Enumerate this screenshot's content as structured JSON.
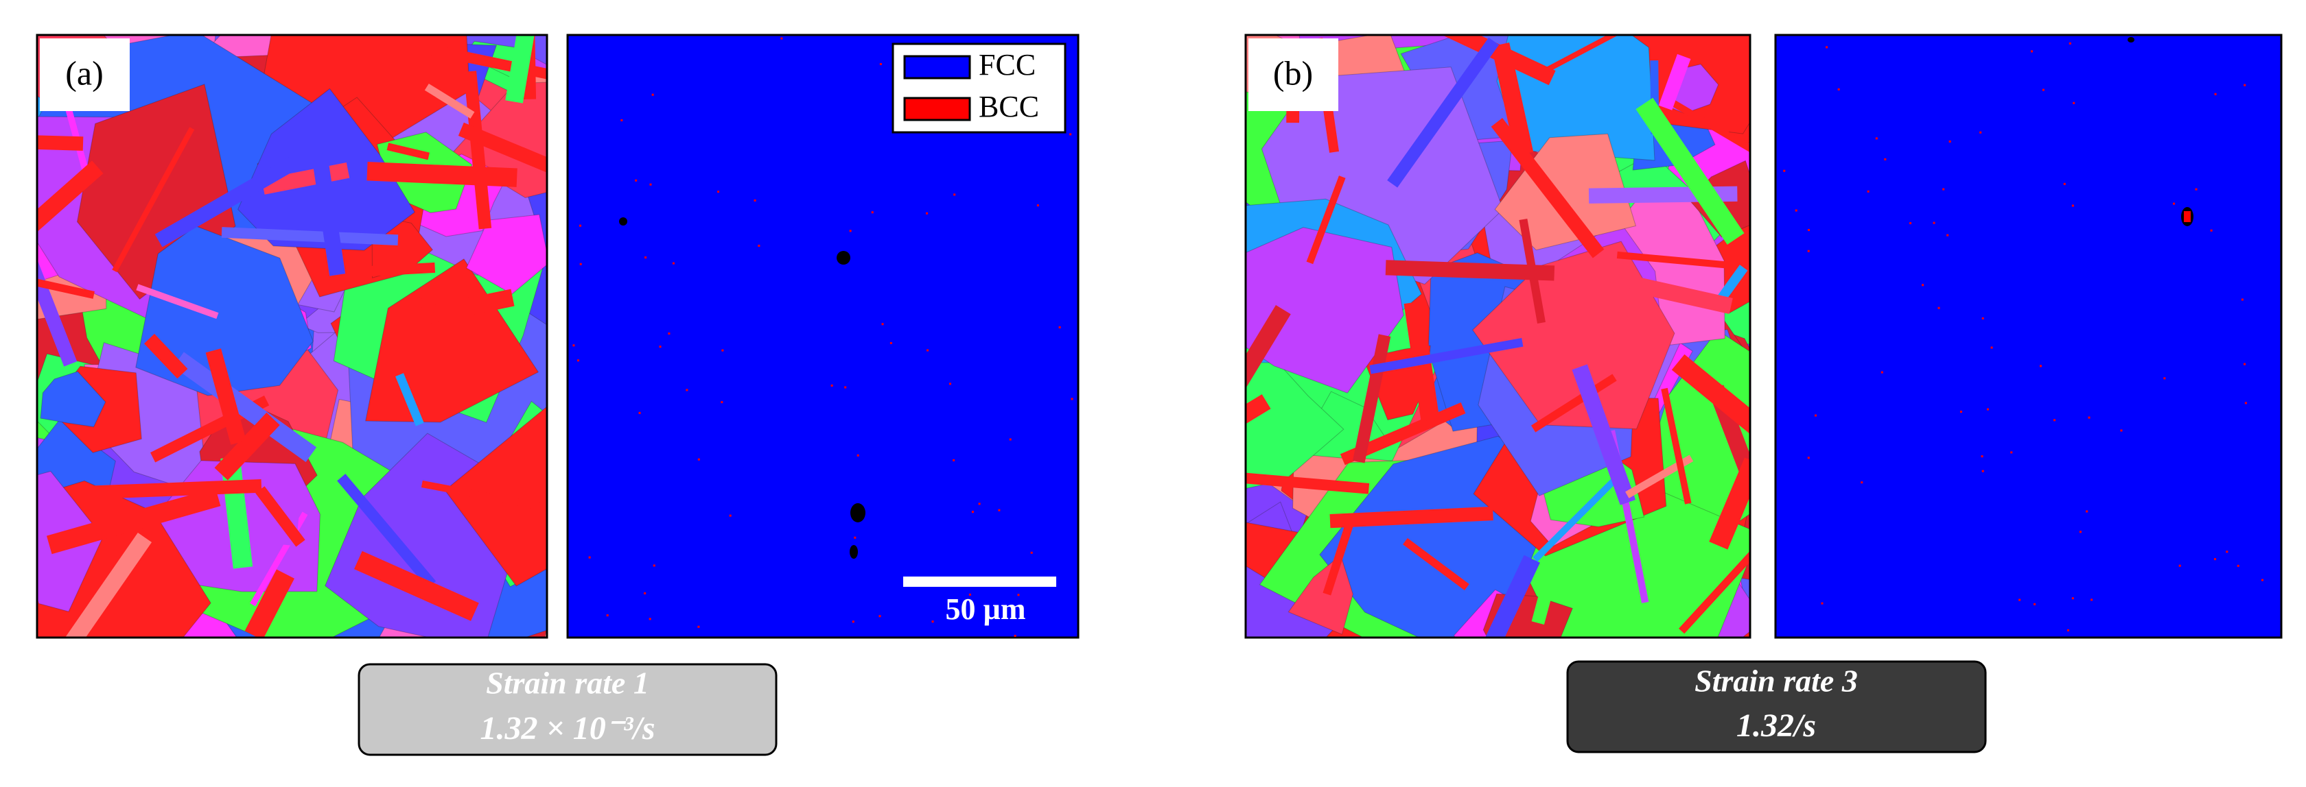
{
  "panels": [
    {
      "label": "(a)",
      "caption": {
        "title": "Strain rate 1",
        "rate": "1.32 × 10⁻³/s"
      }
    },
    {
      "label": "(b)",
      "caption": {
        "title": "Strain rate 3",
        "rate": "1.32/s"
      }
    }
  ],
  "legend": [
    {
      "name": "FCC",
      "color": "#0000ff"
    },
    {
      "name": "BCC",
      "color": "#ff0000"
    }
  ],
  "scale_bar": "50 µm"
}
